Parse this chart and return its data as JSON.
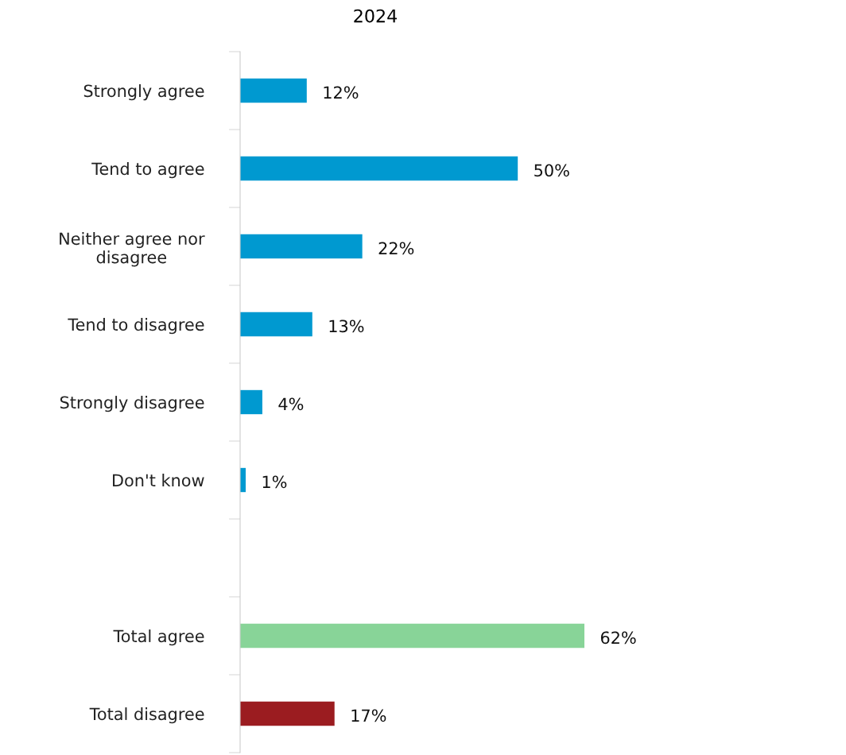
{
  "chart_data": {
    "type": "bar",
    "orientation": "horizontal",
    "title": "2024",
    "categories": [
      "Strongly agree",
      "Tend to agree",
      "Neither agree nor\ndisagree",
      "Tend to disagree",
      "Strongly disagree",
      "Don't know",
      null,
      "Total agree",
      "Total disagree"
    ],
    "values": [
      12,
      50,
      22,
      13,
      4,
      1,
      null,
      62,
      17
    ],
    "colors": [
      "#0099d0",
      "#0099d0",
      "#0099d0",
      "#0099d0",
      "#0099d0",
      "#0099d0",
      null,
      "#88d498",
      "#9b1c20"
    ],
    "value_labels": [
      "12%",
      "50%",
      "22%",
      "13%",
      "4%",
      "1%",
      null,
      "62%",
      "17%"
    ],
    "tick_labels": "y",
    "grid": false,
    "legend": false
  }
}
